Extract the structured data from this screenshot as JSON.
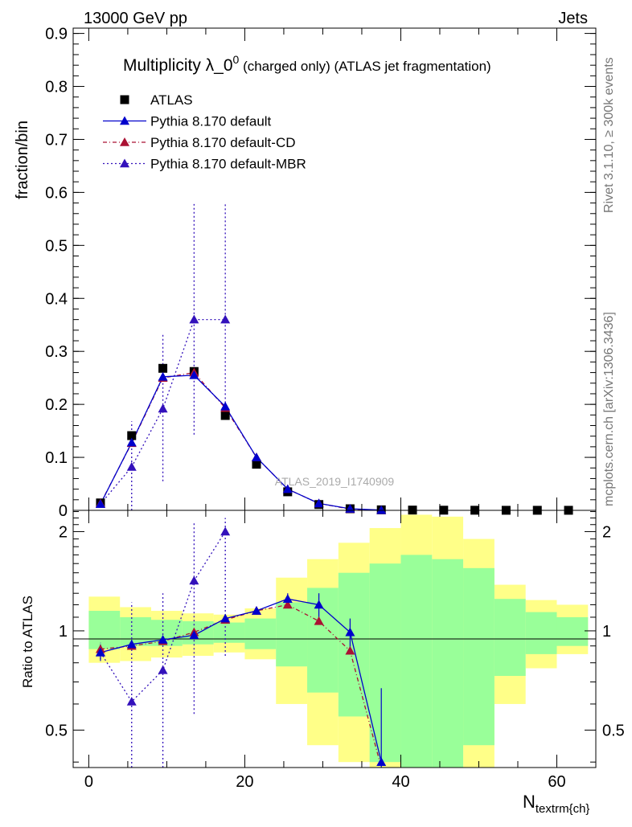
{
  "header": {
    "left": "13000 GeV pp",
    "right": "Jets"
  },
  "side_labels": {
    "rivet": "Rivet 3.1.10, ≥ 300k events",
    "mcplots": "mcplots.cern.ch [arXiv:1306.3436]"
  },
  "chart_data": {
    "type": "line",
    "title": {
      "main": "Multiplicity λ_0",
      "sup": "0",
      "rest": " (charged only) (ATLAS jet fragmentation)"
    },
    "analysis_tag": "ATLAS_2019_I1740909",
    "xlabel_main": "N",
    "xlabel_sub": "textrm{ch}",
    "ylabel_main": "fraction/bin",
    "ylabel_ratio": "Ratio to ATLAS",
    "xlim": [
      -2,
      65
    ],
    "ylim_main": [
      0,
      0.91
    ],
    "ylim_ratio": [
      0.385,
      2.32
    ],
    "x_ticks": [
      "0",
      "20",
      "40",
      "60"
    ],
    "main_ticks": [
      "0",
      "0.1",
      "0.2",
      "0.3",
      "0.4",
      "0.5",
      "0.6",
      "0.7",
      "0.8",
      "0.9"
    ],
    "ratio_ticks": [
      "0.5",
      "1",
      "2"
    ],
    "legend": [
      "ATLAS",
      "Pythia 8.170 default",
      "Pythia 8.170 default-CD",
      "Pythia 8.170 default-MBR"
    ],
    "x": [
      1.5,
      5.5,
      9.5,
      13.5,
      17.5,
      21.5,
      25.5,
      29.5,
      33.5,
      37.5,
      41.5,
      45.5,
      49.5,
      53.5,
      57.5,
      61.5
    ],
    "bin_edges": [
      0,
      4,
      8,
      12,
      16,
      20,
      24,
      28,
      32,
      36,
      40,
      44,
      48,
      52,
      56,
      60,
      64
    ],
    "atlas": [
      0.014,
      0.141,
      0.268,
      0.262,
      0.179,
      0.087,
      0.035,
      0.011,
      0.003,
      0.001,
      0.0005,
      0.0003,
      0.0002,
      0.0001,
      0.0001,
      0.0001
    ],
    "default": [
      0.012,
      0.128,
      0.252,
      0.255,
      0.196,
      0.1,
      0.04,
      0.013,
      0.003,
      0.0004
    ],
    "default_cd": [
      0.013,
      0.127,
      0.25,
      0.26,
      0.193,
      0.1,
      0.04,
      0.013,
      0.0025,
      0.0003
    ],
    "default_mbr": [
      0.012,
      0.082,
      0.192,
      0.36,
      0.36
    ],
    "mbr_err_low": [
      0.0,
      0.0,
      0.055,
      0.143,
      0.18
    ],
    "mbr_err_high": [
      0.0,
      0.168,
      0.333,
      0.578,
      0.578
    ],
    "ratio_default": [
      0.86,
      0.91,
      0.94,
      0.97,
      1.09,
      1.15,
      1.25,
      1.2,
      0.99,
      0.4
    ],
    "ratio_default_cd": [
      0.88,
      0.9,
      0.93,
      0.99,
      1.08,
      1.15,
      1.2,
      1.07,
      0.87,
      0.38
    ],
    "ratio_default_mbr": [
      0.86,
      0.61,
      0.76,
      1.42,
      2.0
    ],
    "band_yellow": [
      [
        0.8,
        1.27
      ],
      [
        0.81,
        1.18
      ],
      [
        0.83,
        1.15
      ],
      [
        0.84,
        1.13
      ],
      [
        0.86,
        1.12
      ],
      [
        0.82,
        1.17
      ],
      [
        0.6,
        1.45
      ],
      [
        0.45,
        1.65
      ],
      [
        0.4,
        1.85
      ],
      [
        0.35,
        2.05
      ],
      [
        0.3,
        2.25
      ],
      [
        0.3,
        2.22
      ],
      [
        0.33,
        1.9
      ],
      [
        0.6,
        1.38
      ],
      [
        0.77,
        1.24
      ],
      [
        0.85,
        1.2
      ]
    ],
    "band_green": [
      [
        0.88,
        1.15
      ],
      [
        0.9,
        1.1
      ],
      [
        0.9,
        1.08
      ],
      [
        0.91,
        1.07
      ],
      [
        0.92,
        1.06
      ],
      [
        0.88,
        1.09
      ],
      [
        0.78,
        1.22
      ],
      [
        0.65,
        1.35
      ],
      [
        0.55,
        1.5
      ],
      [
        0.4,
        1.6
      ],
      [
        0.3,
        1.7
      ],
      [
        0.35,
        1.65
      ],
      [
        0.45,
        1.55
      ],
      [
        0.73,
        1.25
      ],
      [
        0.85,
        1.14
      ],
      [
        0.9,
        1.1
      ]
    ],
    "colors": {
      "atlas": "#000000",
      "default": "#0000cc",
      "default_cd": "#aa1133",
      "default_mbr": "#3311bb",
      "band_yellow": "#ffff88",
      "band_green": "#99ff99"
    }
  }
}
